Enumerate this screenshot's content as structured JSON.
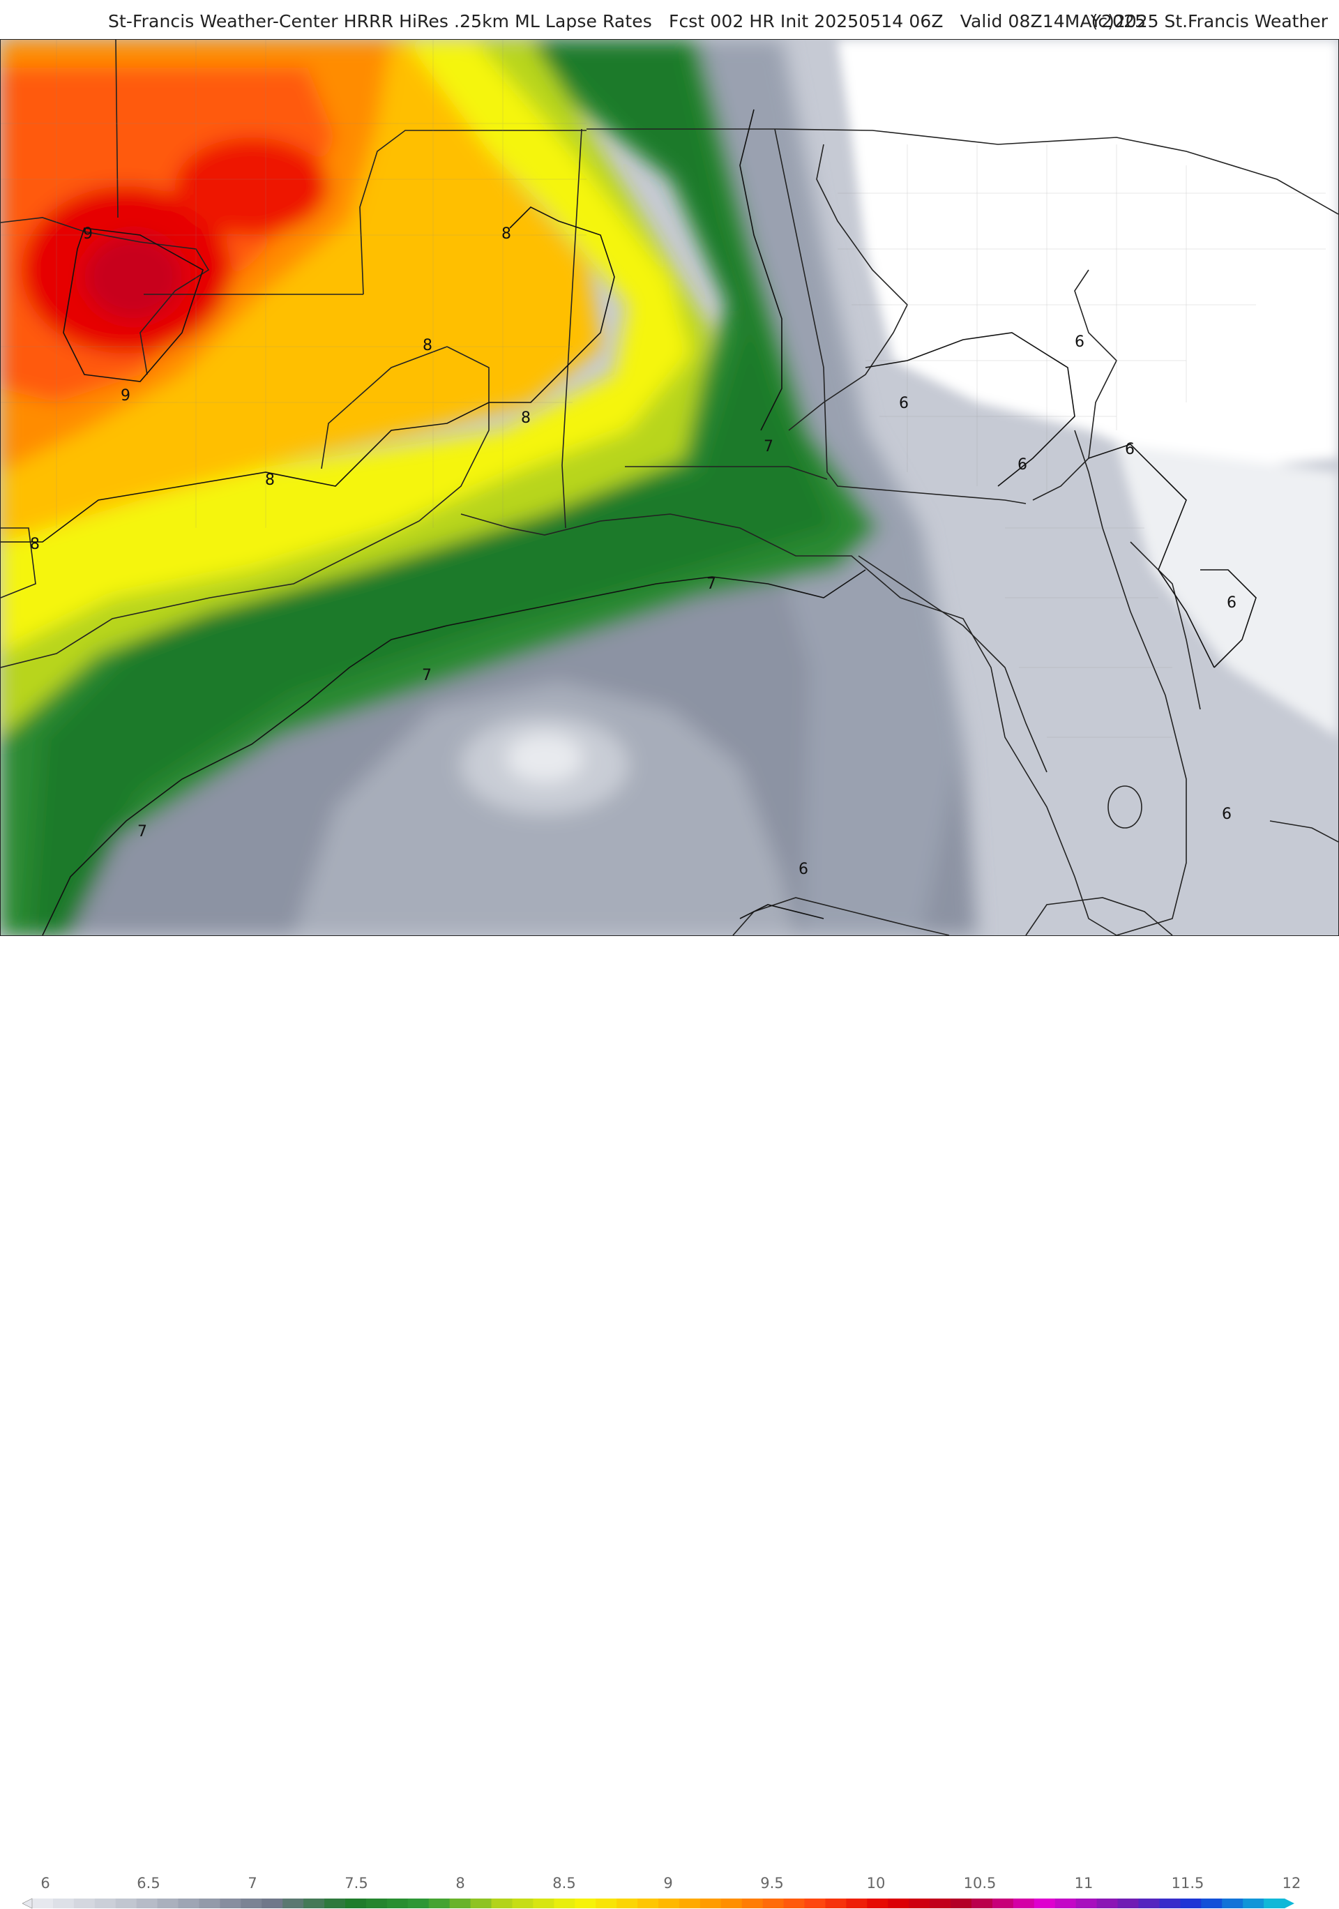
{
  "header": {
    "title": "St-Francis Weather-Center HRRR HiRes .25km ML Lapse Rates   Fcst 002 HR Init 20250514 06Z   Valid 08Z14MAY2025",
    "copyright": "(c)2025 St.Francis Weather"
  },
  "map": {
    "parameter": "ML Lapse Rates",
    "contour_labels": [
      "9",
      "9",
      "8",
      "8",
      "8",
      "8",
      "8",
      "7",
      "7",
      "7",
      "7",
      "6",
      "6",
      "6",
      "6",
      "6",
      "6",
      "6"
    ]
  },
  "legend": {
    "ticks": [
      "6",
      "6.5",
      "7",
      "7.5",
      "8",
      "8.5",
      "9",
      "9.5",
      "10",
      "10.5",
      "11",
      "11.5",
      "12"
    ],
    "colors": {
      "lowest": "#e6e8ee",
      "grey_light": "#c5c9d3",
      "grey_mid": "#9aa1b0",
      "grey_dark": "#6f7789",
      "green_dark": "#1e7a2a",
      "green": "#2f9a36",
      "yellow_green": "#b8d51a",
      "yellow": "#f5f50a",
      "orange_yellow": "#ffbf00",
      "orange": "#ff8c00",
      "red_orange": "#ff4a10",
      "red": "#e10000",
      "dark_red": "#b0002a",
      "magenta": "#e000d0",
      "purple": "#7a1ab0",
      "blue": "#1438d8",
      "cyan": "#10b8d8"
    }
  }
}
